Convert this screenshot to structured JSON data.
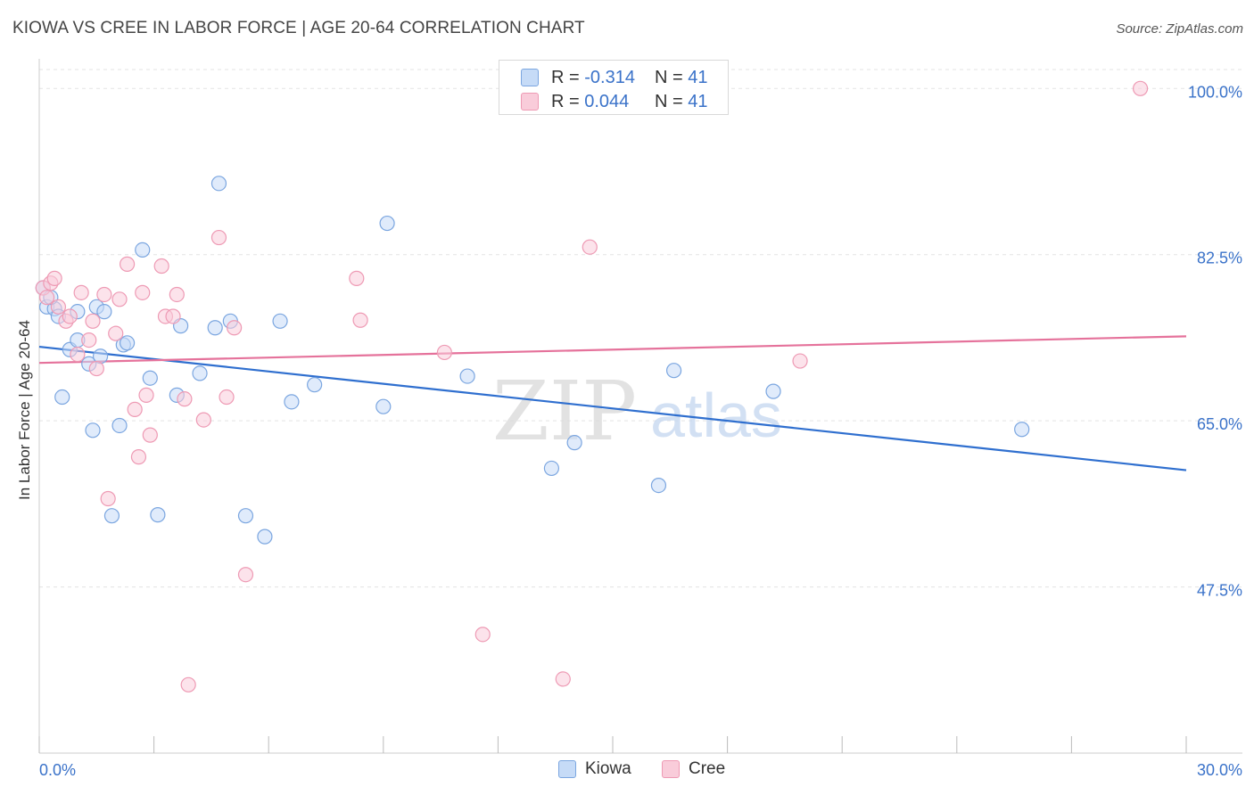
{
  "title": "KIOWA VS CREE IN LABOR FORCE | AGE 20-64 CORRELATION CHART",
  "source": "Source: ZipAtlas.com",
  "watermark": {
    "zip": "ZIP",
    "atlas": "atlas"
  },
  "legend": {
    "r_label": "R =",
    "n_label": "N =",
    "kiowa": {
      "r": "-0.314",
      "n": "41"
    },
    "cree": {
      "r": "0.044",
      "n": "41"
    }
  },
  "bottom_legend": {
    "kiowa": "Kiowa",
    "cree": "Cree"
  },
  "colors": {
    "kiowa_fill": "#c6dbf7",
    "kiowa_stroke": "#7ba6e0",
    "kiowa_line": "#2f6fcf",
    "cree_fill": "#f9ccda",
    "cree_stroke": "#ee9ab4",
    "cree_line": "#e5729b",
    "tick_label": "#3a72c9"
  },
  "chart_data": {
    "type": "scatter",
    "title": "KIOWA VS CREE IN LABOR FORCE | AGE 20-64 CORRELATION CHART",
    "xlabel": "",
    "ylabel": "In Labor Force | Age 20-64",
    "xlim": [
      0,
      30
    ],
    "ylim": [
      30,
      102
    ],
    "x_tick_labels": [
      "0.0%",
      "30.0%"
    ],
    "y_ticks": [
      47.5,
      65.0,
      82.5,
      100.0
    ],
    "y_tick_labels": [
      "47.5%",
      "65.0%",
      "82.5%",
      "100.0%"
    ],
    "grid": true,
    "series": [
      {
        "name": "Kiowa",
        "trend": {
          "x": [
            0,
            30
          ],
          "y": [
            72.8,
            59.8
          ]
        },
        "points": [
          {
            "x": 0.2,
            "y": 77.0
          },
          {
            "x": 0.4,
            "y": 76.8
          },
          {
            "x": 0.5,
            "y": 76.0
          },
          {
            "x": 0.6,
            "y": 67.5
          },
          {
            "x": 0.8,
            "y": 72.5
          },
          {
            "x": 1.0,
            "y": 73.5
          },
          {
            "x": 1.0,
            "y": 76.5
          },
          {
            "x": 1.3,
            "y": 71.0
          },
          {
            "x": 1.4,
            "y": 64.0
          },
          {
            "x": 1.5,
            "y": 77.0
          },
          {
            "x": 1.6,
            "y": 71.8
          },
          {
            "x": 1.7,
            "y": 76.5
          },
          {
            "x": 1.9,
            "y": 55.0
          },
          {
            "x": 2.1,
            "y": 64.5
          },
          {
            "x": 2.2,
            "y": 73.0
          },
          {
            "x": 2.3,
            "y": 73.2
          },
          {
            "x": 2.7,
            "y": 83.0
          },
          {
            "x": 2.9,
            "y": 69.5
          },
          {
            "x": 3.1,
            "y": 55.1
          },
          {
            "x": 3.6,
            "y": 67.7
          },
          {
            "x": 3.7,
            "y": 75.0
          },
          {
            "x": 4.2,
            "y": 70.0
          },
          {
            "x": 4.6,
            "y": 74.8
          },
          {
            "x": 4.7,
            "y": 90.0
          },
          {
            "x": 5.0,
            "y": 75.5
          },
          {
            "x": 5.4,
            "y": 55.0
          },
          {
            "x": 5.9,
            "y": 52.8
          },
          {
            "x": 6.3,
            "y": 75.5
          },
          {
            "x": 6.6,
            "y": 67.0
          },
          {
            "x": 7.2,
            "y": 68.8
          },
          {
            "x": 9.0,
            "y": 66.5
          },
          {
            "x": 9.1,
            "y": 85.8
          },
          {
            "x": 11.2,
            "y": 69.7
          },
          {
            "x": 13.4,
            "y": 60.0
          },
          {
            "x": 14.0,
            "y": 62.7
          },
          {
            "x": 16.2,
            "y": 58.2
          },
          {
            "x": 16.6,
            "y": 70.3
          },
          {
            "x": 19.2,
            "y": 68.1
          },
          {
            "x": 25.7,
            "y": 64.1
          },
          {
            "x": 0.1,
            "y": 79.0
          },
          {
            "x": 0.3,
            "y": 78.0
          }
        ]
      },
      {
        "name": "Cree",
        "trend": {
          "x": [
            0,
            30
          ],
          "y": [
            71.1,
            73.9
          ]
        },
        "points": [
          {
            "x": 0.1,
            "y": 79.0
          },
          {
            "x": 0.2,
            "y": 78.0
          },
          {
            "x": 0.3,
            "y": 79.5
          },
          {
            "x": 0.4,
            "y": 80.0
          },
          {
            "x": 0.5,
            "y": 77.0
          },
          {
            "x": 0.7,
            "y": 75.5
          },
          {
            "x": 0.8,
            "y": 76.0
          },
          {
            "x": 1.0,
            "y": 72.0
          },
          {
            "x": 1.1,
            "y": 78.5
          },
          {
            "x": 1.3,
            "y": 73.5
          },
          {
            "x": 1.4,
            "y": 75.5
          },
          {
            "x": 1.5,
            "y": 70.5
          },
          {
            "x": 1.7,
            "y": 78.3
          },
          {
            "x": 1.8,
            "y": 56.8
          },
          {
            "x": 2.0,
            "y": 74.2
          },
          {
            "x": 2.1,
            "y": 77.8
          },
          {
            "x": 2.3,
            "y": 81.5
          },
          {
            "x": 2.5,
            "y": 66.2
          },
          {
            "x": 2.6,
            "y": 61.2
          },
          {
            "x": 2.7,
            "y": 78.5
          },
          {
            "x": 2.8,
            "y": 67.7
          },
          {
            "x": 2.9,
            "y": 63.5
          },
          {
            "x": 3.2,
            "y": 81.3
          },
          {
            "x": 3.3,
            "y": 76.0
          },
          {
            "x": 3.5,
            "y": 76.0
          },
          {
            "x": 3.6,
            "y": 78.3
          },
          {
            "x": 3.8,
            "y": 67.3
          },
          {
            "x": 3.9,
            "y": 37.2
          },
          {
            "x": 4.3,
            "y": 65.1
          },
          {
            "x": 4.7,
            "y": 84.3
          },
          {
            "x": 4.9,
            "y": 67.5
          },
          {
            "x": 5.1,
            "y": 74.8
          },
          {
            "x": 5.4,
            "y": 48.8
          },
          {
            "x": 8.3,
            "y": 80.0
          },
          {
            "x": 8.4,
            "y": 75.6
          },
          {
            "x": 10.6,
            "y": 72.2
          },
          {
            "x": 11.6,
            "y": 42.5
          },
          {
            "x": 13.7,
            "y": 37.8
          },
          {
            "x": 14.4,
            "y": 83.3
          },
          {
            "x": 19.9,
            "y": 71.3
          },
          {
            "x": 28.8,
            "y": 100.0
          }
        ]
      }
    ]
  }
}
